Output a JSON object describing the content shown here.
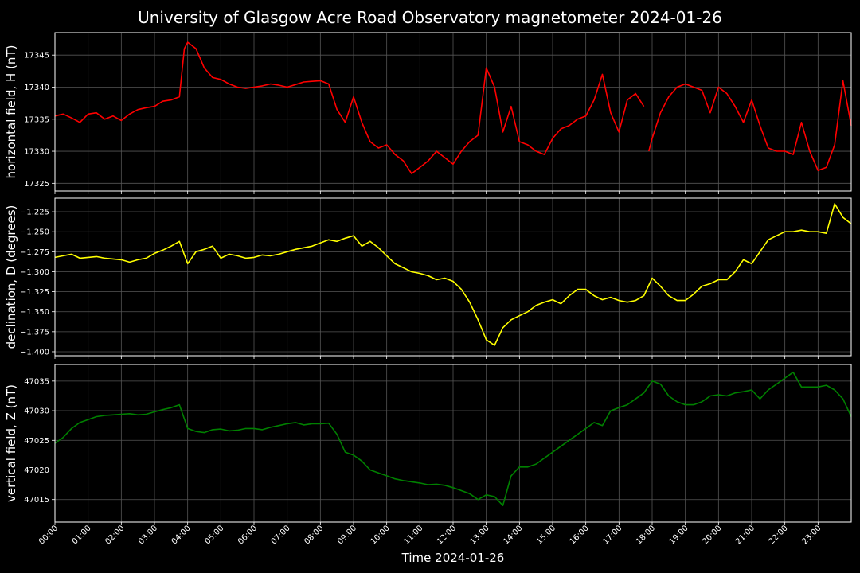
{
  "chart_data": {
    "type": "line",
    "title": "University of Glasgow Acre Road Observatory magnetometer 2024-01-26",
    "xlabel": "Time 2024-01-26",
    "x_ticks": [
      "00:00",
      "01:00",
      "02:00",
      "03:00",
      "04:00",
      "05:00",
      "06:00",
      "07:00",
      "08:00",
      "09:00",
      "10:00",
      "11:00",
      "12:00",
      "13:00",
      "14:00",
      "15:00",
      "16:00",
      "17:00",
      "18:00",
      "19:00",
      "20:00",
      "21:00",
      "22:00",
      "23:00"
    ],
    "x_range_hours": [
      0,
      24
    ],
    "grid": true,
    "panels": [
      {
        "ylabel": "horizontal field, H (nT)",
        "color": "#ff0000",
        "ylim": [
          17323.8,
          17348.5
        ],
        "yticks": [
          17325,
          17330,
          17335,
          17340,
          17345
        ],
        "ytick_labels": [
          "17325",
          "17330",
          "17335",
          "17340",
          "17345"
        ],
        "series": [
          {
            "x": [
              0,
              0.25,
              0.5,
              0.75,
              1,
              1.25,
              1.5,
              1.75,
              2,
              2.25,
              2.5,
              2.75,
              3,
              3.25,
              3.5,
              3.75,
              3.9,
              4,
              4.25,
              4.5,
              4.75,
              5,
              5.25,
              5.5,
              5.75,
              6,
              6.25,
              6.5,
              6.75,
              7,
              7.25,
              7.5,
              7.75,
              8,
              8.25,
              8.5,
              8.75,
              9,
              9.25,
              9.5,
              9.75,
              10,
              10.25,
              10.5,
              10.75,
              11,
              11.25,
              11.5,
              11.75,
              12,
              12.25,
              12.5,
              12.75,
              13,
              13.25,
              13.5,
              13.75,
              14,
              14.25,
              14.5,
              14.75,
              15,
              15.25,
              15.5,
              15.75,
              16,
              16.25,
              16.5,
              16.75,
              17,
              17.25,
              17.5,
              17.75
            ],
            "values": [
              17335.5,
              17335.8,
              17335.2,
              17334.5,
              17335.8,
              17336,
              17335,
              17335.5,
              17334.8,
              17335.8,
              17336.5,
              17336.8,
              17337,
              17337.8,
              17338,
              17338.5,
              17346,
              17347,
              17346,
              17343,
              17341.5,
              17341.2,
              17340.5,
              17340,
              17339.8,
              17340,
              17340.2,
              17340.5,
              17340.3,
              17340,
              17340.4,
              17340.8,
              17340.9,
              17341,
              17340.5,
              17336.5,
              17334.5,
              17338.5,
              17334.5,
              17331.5,
              17330.5,
              17331,
              17329.5,
              17328.5,
              17326.5,
              17327.5,
              17328.5,
              17330,
              17329,
              17328,
              17330,
              17331.5,
              17332.5,
              17343,
              17340,
              17333,
              17337,
              17331.5,
              17331,
              17330,
              17329.5,
              17332,
              17333.5,
              17334,
              17335,
              17335.5,
              17338,
              17342,
              17336,
              17333,
              17338,
              17339,
              17337
            ]
          },
          {
            "x": [
              17.9,
              18,
              18.25,
              18.5,
              18.75,
              19,
              19.25,
              19.5,
              19.75,
              20,
              20.25,
              20.5,
              20.75,
              21,
              21.25,
              21.5,
              21.75,
              22,
              22.25,
              22.5,
              22.75,
              23,
              23.25,
              23.5,
              23.75,
              24
            ],
            "values": [
              17330,
              17332,
              17336,
              17338.5,
              17340,
              17340.5,
              17340,
              17339.5,
              17336,
              17340,
              17339,
              17337,
              17334.5,
              17338,
              17334,
              17330.5,
              17330,
              17330,
              17329.5,
              17334.5,
              17330,
              17327,
              17327.5,
              17331,
              17341,
              17334
            ]
          }
        ]
      },
      {
        "ylabel": "declination, D (degrees)",
        "color": "#ffff00",
        "ylim": [
          -1.405,
          -1.208
        ],
        "yticks": [
          -1.4,
          -1.375,
          -1.35,
          -1.325,
          -1.3,
          -1.275,
          -1.25,
          -1.225
        ],
        "ytick_labels": [
          "−1.400",
          "−1.375",
          "−1.350",
          "−1.325",
          "−1.300",
          "−1.275",
          "−1.250",
          "−1.225"
        ],
        "series": [
          {
            "x": [
              0,
              0.25,
              0.5,
              0.75,
              1,
              1.25,
              1.5,
              1.75,
              2,
              2.25,
              2.5,
              2.75,
              3,
              3.25,
              3.5,
              3.75,
              4,
              4.25,
              4.5,
              4.75,
              5,
              5.25,
              5.5,
              5.75,
              6,
              6.25,
              6.5,
              6.75,
              7,
              7.25,
              7.5,
              7.75,
              8,
              8.25,
              8.5,
              8.75,
              9,
              9.25,
              9.5,
              9.75,
              10,
              10.25,
              10.5,
              10.75,
              11,
              11.25,
              11.5,
              11.75,
              12,
              12.25,
              12.5,
              12.75,
              13,
              13.25,
              13.5,
              13.75,
              14,
              14.25,
              14.5,
              14.75,
              15,
              15.25,
              15.5,
              15.75,
              16,
              16.25,
              16.5,
              16.75,
              17,
              17.25,
              17.5,
              17.75,
              18,
              18.25,
              18.5,
              18.75,
              19,
              19.25,
              19.5,
              19.75,
              20,
              20.25,
              20.5,
              20.75,
              21,
              21.25,
              21.5,
              21.75,
              22,
              22.25,
              22.5,
              22.75,
              23,
              23.25,
              23.5,
              23.75,
              24
            ],
            "values": [
              -1.282,
              -1.28,
              -1.278,
              -1.283,
              -1.282,
              -1.281,
              -1.283,
              -1.284,
              -1.285,
              -1.288,
              -1.285,
              -1.283,
              -1.277,
              -1.273,
              -1.268,
              -1.262,
              -1.29,
              -1.275,
              -1.272,
              -1.268,
              -1.283,
              -1.278,
              -1.28,
              -1.283,
              -1.282,
              -1.279,
              -1.28,
              -1.278,
              -1.275,
              -1.272,
              -1.27,
              -1.268,
              -1.264,
              -1.26,
              -1.262,
              -1.258,
              -1.255,
              -1.268,
              -1.262,
              -1.27,
              -1.28,
              -1.29,
              -1.295,
              -1.3,
              -1.302,
              -1.305,
              -1.31,
              -1.308,
              -1.312,
              -1.322,
              -1.338,
              -1.36,
              -1.385,
              -1.392,
              -1.37,
              -1.36,
              -1.355,
              -1.35,
              -1.342,
              -1.338,
              -1.335,
              -1.34,
              -1.33,
              -1.322,
              -1.322,
              -1.33,
              -1.335,
              -1.332,
              -1.336,
              -1.338,
              -1.336,
              -1.33,
              -1.308,
              -1.318,
              -1.33,
              -1.336,
              -1.336,
              -1.328,
              -1.318,
              -1.315,
              -1.31,
              -1.31,
              -1.3,
              -1.285,
              -1.29,
              -1.275,
              -1.26,
              -1.255,
              -1.25,
              -1.25,
              -1.248,
              -1.25,
              -1.25,
              -1.252,
              -1.215,
              -1.232,
              -1.24
            ]
          }
        ]
      },
      {
        "ylabel": "vertical field, Z (nT)",
        "color": "#008000",
        "ylim": [
          47011.2,
          47037.8
        ],
        "yticks": [
          47015,
          47020,
          47025,
          47030,
          47035
        ],
        "ytick_labels": [
          "47015",
          "47020",
          "47025",
          "47030",
          "47035"
        ],
        "series": [
          {
            "x": [
              0,
              0.25,
              0.5,
              0.75,
              1,
              1.25,
              1.5,
              1.75,
              2,
              2.25,
              2.5,
              2.75,
              3,
              3.25,
              3.5,
              3.75,
              4,
              4.25,
              4.5,
              4.75,
              5,
              5.25,
              5.5,
              5.75,
              6,
              6.25,
              6.5,
              6.75,
              7,
              7.25,
              7.5,
              7.75,
              8,
              8.25,
              8.5,
              8.75,
              9,
              9.25,
              9.5,
              9.75,
              10,
              10.25,
              10.5,
              10.75,
              11,
              11.25,
              11.5,
              11.75,
              12,
              12.25,
              12.5,
              12.75,
              13,
              13.25,
              13.5,
              13.75,
              14,
              14.25,
              14.5,
              14.75,
              15,
              15.25,
              15.5,
              15.75,
              16,
              16.25,
              16.5,
              16.75,
              17,
              17.25,
              17.5,
              17.75,
              18,
              18.25,
              18.5,
              18.75,
              19,
              19.25,
              19.5,
              19.75,
              20,
              20.25,
              20.5,
              20.75,
              21,
              21.25,
              21.5,
              21.75,
              22,
              22.25,
              22.5,
              22.75,
              23,
              23.25,
              23.5,
              23.75,
              24
            ],
            "values": [
              47024.5,
              47025.5,
              47027,
              47028,
              47028.5,
              47029,
              47029.2,
              47029.3,
              47029.4,
              47029.5,
              47029.3,
              47029.4,
              47029.8,
              47030.2,
              47030.5,
              47031,
              47027,
              47026.5,
              47026.3,
              47026.8,
              47026.9,
              47026.6,
              47026.7,
              47027,
              47027,
              47026.8,
              47027.2,
              47027.5,
              47027.8,
              47028,
              47027.6,
              47027.8,
              47027.8,
              47027.9,
              47026,
              47023,
              47022.5,
              47021.5,
              47020,
              47019.5,
              47019,
              47018.5,
              47018.2,
              47018,
              47017.8,
              47017.5,
              47017.6,
              47017.4,
              47017,
              47016.5,
              47016,
              47015,
              47015.8,
              47015.5,
              47014,
              47019,
              47020.5,
              47020.5,
              47021,
              47022,
              47023,
              47024,
              47025,
              47026,
              47027,
              47028,
              47027.5,
              47030,
              47030.5,
              47031,
              47032,
              47033,
              47035,
              47034.5,
              47032.5,
              47031.5,
              47031,
              47031,
              47031.5,
              47032.5,
              47032.7,
              47032.5,
              47033,
              47033.2,
              47033.5,
              47032,
              47033.5,
              47034.5,
              47035.5,
              47036.5,
              47034,
              47034,
              47034,
              47034.3,
              47033.5,
              47032,
              47029
            ]
          }
        ]
      }
    ]
  }
}
